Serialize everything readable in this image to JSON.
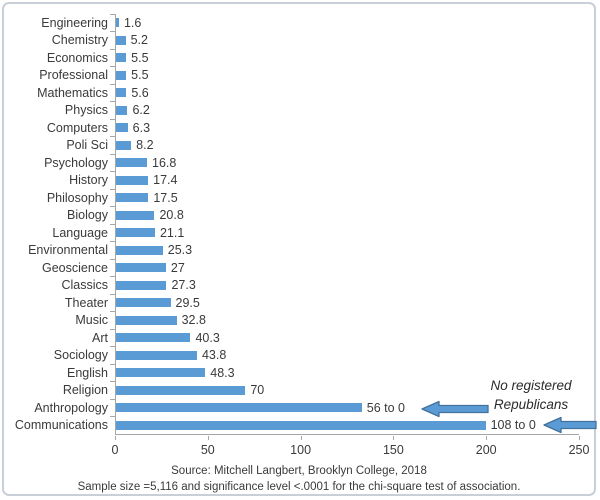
{
  "chart_data": {
    "type": "bar",
    "orientation": "horizontal",
    "title": "",
    "xlabel": "",
    "ylabel": "",
    "xlim": [
      0,
      250
    ],
    "x_ticks": [
      0,
      50,
      100,
      150,
      200,
      250
    ],
    "grid": false,
    "legend": null,
    "rows": [
      {
        "label": "Engineering",
        "value": 1.6,
        "value_label": "1.6",
        "bar_length": 1.6
      },
      {
        "label": "Chemistry",
        "value": 5.2,
        "value_label": "5.2",
        "bar_length": 5.2
      },
      {
        "label": "Economics",
        "value": 5.5,
        "value_label": "5.5",
        "bar_length": 5.5
      },
      {
        "label": "Professional",
        "value": 5.5,
        "value_label": "5.5",
        "bar_length": 5.5
      },
      {
        "label": "Mathematics",
        "value": 5.6,
        "value_label": "5.6",
        "bar_length": 5.6
      },
      {
        "label": "Physics",
        "value": 6.2,
        "value_label": "6.2",
        "bar_length": 6.2
      },
      {
        "label": "Computers",
        "value": 6.3,
        "value_label": "6.3",
        "bar_length": 6.3
      },
      {
        "label": "Poli Sci",
        "value": 8.2,
        "value_label": "8.2",
        "bar_length": 8.2
      },
      {
        "label": "Psychology",
        "value": 16.8,
        "value_label": "16.8",
        "bar_length": 16.8
      },
      {
        "label": "History",
        "value": 17.4,
        "value_label": "17.4",
        "bar_length": 17.4
      },
      {
        "label": "Philosophy",
        "value": 17.5,
        "value_label": "17.5",
        "bar_length": 17.5
      },
      {
        "label": "Biology",
        "value": 20.8,
        "value_label": "20.8",
        "bar_length": 20.8
      },
      {
        "label": "Language",
        "value": 21.1,
        "value_label": "21.1",
        "bar_length": 21.1
      },
      {
        "label": "Environmental",
        "value": 25.3,
        "value_label": "25.3",
        "bar_length": 25.3
      },
      {
        "label": "Geoscience",
        "value": 27,
        "value_label": "27",
        "bar_length": 27
      },
      {
        "label": "Classics",
        "value": 27.3,
        "value_label": "27.3",
        "bar_length": 27.3
      },
      {
        "label": "Theater",
        "value": 29.5,
        "value_label": "29.5",
        "bar_length": 29.5
      },
      {
        "label": "Music",
        "value": 32.8,
        "value_label": "32.8",
        "bar_length": 32.8
      },
      {
        "label": "Art",
        "value": 40.3,
        "value_label": "40.3",
        "bar_length": 40.3
      },
      {
        "label": "Sociology",
        "value": 43.8,
        "value_label": "43.8",
        "bar_length": 43.8
      },
      {
        "label": "English",
        "value": 48.3,
        "value_label": "48.3",
        "bar_length": 48.3
      },
      {
        "label": "Religion",
        "value": 70,
        "value_label": "70",
        "bar_length": 70
      },
      {
        "label": "Anthropology",
        "value": null,
        "value_label": "56 to 0",
        "bar_length": 133
      },
      {
        "label": "Communications",
        "value": null,
        "value_label": "108 to 0",
        "bar_length": 200
      }
    ],
    "annotation": {
      "lines": [
        "No registered",
        "Republicans"
      ],
      "points_to": [
        "Anthropology",
        "Communications"
      ]
    }
  },
  "footer": {
    "source": "Source: Mitchell Langbert, Brooklyn College, 2018",
    "note": "Sample size =5,116 and significance level <.0001 for the chi-square test of association."
  },
  "colors": {
    "bar": "#5b9bd5",
    "arrow_fill": "#5b9bd5",
    "arrow_stroke": "#41719c",
    "axis": "#a6a6a6",
    "text": "#3a3a3a"
  }
}
